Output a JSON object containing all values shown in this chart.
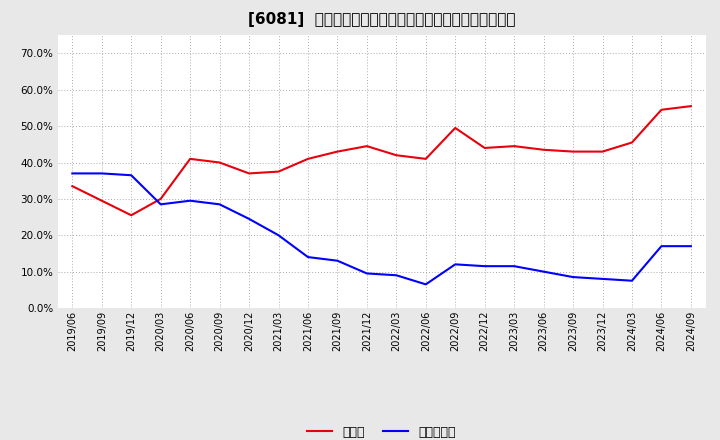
{
  "title": "[6081]  現預金、有利子負債の総資産に対する比率の推移",
  "x_labels": [
    "2019/06",
    "2019/09",
    "2019/12",
    "2020/03",
    "2020/06",
    "2020/09",
    "2020/12",
    "2021/03",
    "2021/06",
    "2021/09",
    "2021/12",
    "2022/03",
    "2022/06",
    "2022/09",
    "2022/12",
    "2023/03",
    "2023/06",
    "2023/09",
    "2023/12",
    "2024/03",
    "2024/06",
    "2024/09"
  ],
  "cash": [
    0.335,
    0.295,
    0.255,
    0.3,
    0.41,
    0.4,
    0.37,
    0.375,
    0.41,
    0.43,
    0.445,
    0.42,
    0.41,
    0.495,
    0.44,
    0.445,
    0.435,
    0.43,
    0.43,
    0.455,
    0.545,
    0.555
  ],
  "debt": [
    0.37,
    0.37,
    0.365,
    0.285,
    0.295,
    0.285,
    0.245,
    0.2,
    0.14,
    0.13,
    0.095,
    0.09,
    0.065,
    0.12,
    0.115,
    0.115,
    0.1,
    0.085,
    0.08,
    0.075,
    0.17,
    0.17
  ],
  "cash_color": "#e8000d",
  "debt_color": "#0000ff",
  "background_color": "#e8e8e8",
  "plot_bg_color": "#ffffff",
  "grid_color": "#aaaaaa",
  "title_fontsize": 11,
  "tick_fontsize": 7,
  "legend_cash": "現預金",
  "legend_debt": "有利子負債",
  "ylim": [
    0.0,
    0.75
  ],
  "yticks": [
    0.0,
    0.1,
    0.2,
    0.3,
    0.4,
    0.5,
    0.6,
    0.7
  ]
}
